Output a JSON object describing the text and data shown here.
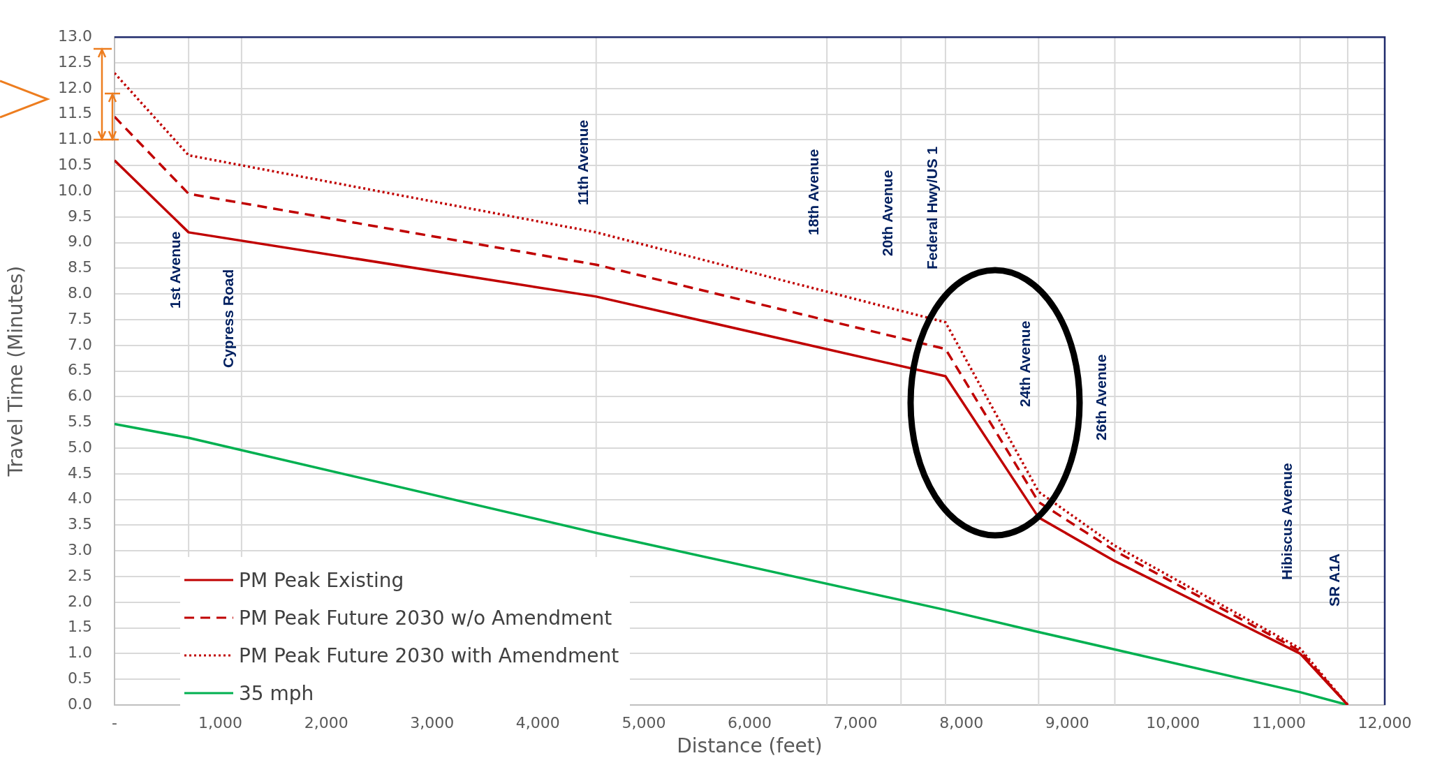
{
  "chart_data": {
    "type": "line",
    "xlabel": "Distance (feet)",
    "ylabel": "Travel Time (Minutes)",
    "x": [
      0,
      700,
      4550,
      7850,
      8730,
      9450,
      11200,
      11650
    ],
    "series": [
      {
        "name": "PM Peak Existing",
        "color": "#c00000",
        "line_style": "solid",
        "values": [
          10.6,
          9.2,
          7.95,
          6.4,
          3.65,
          2.8,
          1.0,
          0
        ]
      },
      {
        "name": "PM Peak Future 2030 w/o Amendment",
        "color": "#c00000",
        "line_style": "dashed",
        "values": [
          11.45,
          9.95,
          8.57,
          6.93,
          3.95,
          3.0,
          1.05,
          0
        ]
      },
      {
        "name": "PM Peak Future 2030 with Amendment",
        "color": "#c00000",
        "line_style": "dotted",
        "values": [
          12.3,
          10.7,
          9.2,
          7.45,
          4.15,
          3.1,
          1.1,
          0
        ]
      },
      {
        "name": "35 mph",
        "color": "#00b050",
        "line_style": "solid",
        "values": [
          5.47,
          5.2,
          3.35,
          1.85,
          1.42,
          1.08,
          0.25,
          0
        ]
      }
    ],
    "xlim": [
      0,
      12000
    ],
    "xticks": [
      {
        "value": 0,
        "label": "-"
      },
      {
        "value": 1000,
        "label": "1,000"
      },
      {
        "value": 2000,
        "label": "2,000"
      },
      {
        "value": 3000,
        "label": "3,000"
      },
      {
        "value": 4000,
        "label": "4,000"
      },
      {
        "value": 5000,
        "label": "5,000"
      },
      {
        "value": 6000,
        "label": "6,000"
      },
      {
        "value": 7000,
        "label": "7,000"
      },
      {
        "value": 8000,
        "label": "8,000"
      },
      {
        "value": 9000,
        "label": "9,000"
      },
      {
        "value": 10000,
        "label": "10,000"
      },
      {
        "value": 11000,
        "label": "11,000"
      },
      {
        "value": 12000,
        "label": "12,000"
      }
    ],
    "ylim": [
      0,
      13
    ],
    "yticks": [
      {
        "value": 0,
        "label": "0.0"
      },
      {
        "value": 0.5,
        "label": "0.5"
      },
      {
        "value": 1,
        "label": "1.0"
      },
      {
        "value": 1.5,
        "label": "1.5"
      },
      {
        "value": 2,
        "label": "2.0"
      },
      {
        "value": 2.5,
        "label": "2.5"
      },
      {
        "value": 3,
        "label": "3.0"
      },
      {
        "value": 3.5,
        "label": "3.5"
      },
      {
        "value": 4,
        "label": "4.0"
      },
      {
        "value": 4.5,
        "label": "4.5"
      },
      {
        "value": 5,
        "label": "5.0"
      },
      {
        "value": 5.5,
        "label": "5.5"
      },
      {
        "value": 6,
        "label": "6.0"
      },
      {
        "value": 6.5,
        "label": "6.5"
      },
      {
        "value": 7,
        "label": "7.0"
      },
      {
        "value": 7.5,
        "label": "7.5"
      },
      {
        "value": 8,
        "label": "8.0"
      },
      {
        "value": 8.5,
        "label": "8.5"
      },
      {
        "value": 9,
        "label": "9.0"
      },
      {
        "value": 9.5,
        "label": "9.5"
      },
      {
        "value": 10,
        "label": "10.0"
      },
      {
        "value": 10.5,
        "label": "10.5"
      },
      {
        "value": 11,
        "label": "11.0"
      },
      {
        "value": 11.5,
        "label": "11.5"
      },
      {
        "value": 12,
        "label": "12.0"
      },
      {
        "value": 12.5,
        "label": "12.5"
      },
      {
        "value": 13,
        "label": "13.0"
      }
    ],
    "ref_lines": [
      {
        "axis": "x",
        "value": 700,
        "label": "1st Avenue",
        "color": "#d9d9d9"
      },
      {
        "axis": "x",
        "value": 1200,
        "label": "Cypress Road",
        "color": "#d9d9d9"
      },
      {
        "axis": "x",
        "value": 4550,
        "label": "11th Avenue",
        "color": "#d9d9d9"
      },
      {
        "axis": "x",
        "value": 6730,
        "label": "18th Avenue",
        "color": "#d9d9d9"
      },
      {
        "axis": "x",
        "value": 7430,
        "label": "20th Avenue",
        "color": "#d9d9d9"
      },
      {
        "axis": "x",
        "value": 7850,
        "label": "Federal Hwy/US 1",
        "color": "#d9d9d9"
      },
      {
        "axis": "x",
        "value": 8730,
        "label": "24th Avenue",
        "color": "#d9d9d9"
      },
      {
        "axis": "x",
        "value": 9450,
        "label": "26th Avenue",
        "color": "#d9d9d9"
      },
      {
        "axis": "x",
        "value": 11200,
        "label": "Hibiscus Avenue",
        "color": "#d9d9d9"
      },
      {
        "axis": "x",
        "value": 11650,
        "label": "SR A1A",
        "color": "#d9d9d9"
      }
    ],
    "grid": "y",
    "legend": "bottom left",
    "marker": "none"
  }
}
